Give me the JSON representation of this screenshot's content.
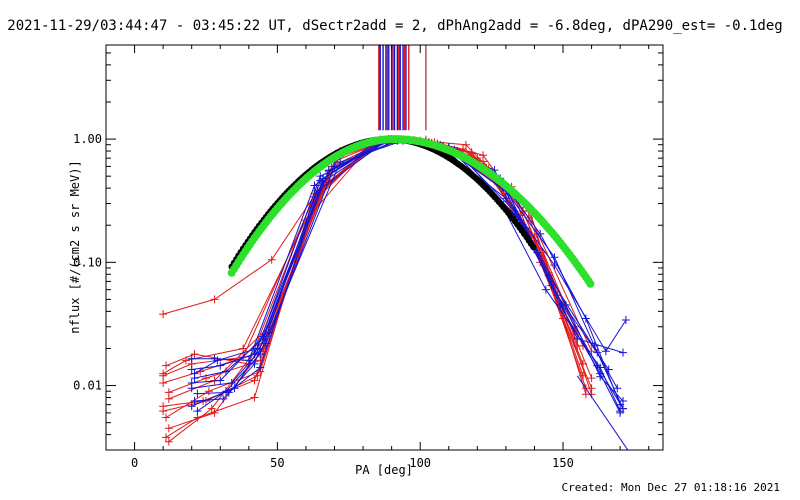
{
  "title": "2021-11-29/03:44:47 - 03:45:22 UT, dSectr2add = 2, dPhAng2add = -6.8deg, dPA290_est= -0.1deg",
  "footer": "Created: Mon Dec 27 01:18:16 2021",
  "chart_data": {
    "type": "line",
    "xlabel": "PA [deg]",
    "ylabel": "nflux [#/(cm2 s sr MeV)]",
    "xlim": [
      -10,
      185
    ],
    "ylim": [
      0.003,
      5.8
    ],
    "yscale": "log",
    "xticks": [
      0,
      50,
      100,
      150
    ],
    "xtick_labels": [
      "0",
      "50",
      "100",
      "150"
    ],
    "yticks": [
      0.01,
      0.1,
      1.0
    ],
    "ytick_labels": [
      "0.01",
      "0.10",
      "1.00"
    ],
    "grid": false,
    "colors": {
      "red": "#e21a1a",
      "blue": "#1414d2",
      "green": "#2ce02c",
      "black": "#000000",
      "darkred": "#8b0000"
    },
    "vertical_markers": {
      "blue": [
        86,
        87,
        88,
        89,
        90,
        91,
        92,
        93,
        94,
        95
      ],
      "red": [
        85.5,
        88.5,
        90.5,
        92.5,
        94.5,
        96
      ],
      "darkred": [
        102
      ],
      "ymin": 1.18
    },
    "series": [
      {
        "color": "red",
        "x": [
          10,
          28,
          48,
          72,
          88,
          98,
          116,
          137,
          160
        ],
        "y": [
          0.038,
          0.05,
          0.105,
          0.72,
          0.97,
          0.98,
          0.9,
          0.28,
          0.019
        ]
      },
      {
        "color": "red",
        "x": [
          10,
          20,
          38,
          63,
          85,
          102,
          122,
          138,
          154
        ],
        "y": [
          0.012,
          0.015,
          0.017,
          0.34,
          0.93,
          0.99,
          0.74,
          0.23,
          0.03
        ]
      },
      {
        "color": "red",
        "x": [
          10,
          24,
          42,
          66,
          87,
          105,
          122,
          140,
          157
        ],
        "y": [
          0.0068,
          0.0075,
          0.011,
          0.4,
          0.97,
          0.94,
          0.62,
          0.16,
          0.012
        ]
      },
      {
        "color": "red",
        "x": [
          11,
          26,
          44,
          64,
          86,
          106,
          120,
          140,
          158
        ],
        "y": [
          0.0055,
          0.009,
          0.013,
          0.35,
          0.99,
          0.92,
          0.7,
          0.15,
          0.0095
        ]
      },
      {
        "color": "red",
        "x": [
          12,
          28,
          45,
          68,
          88,
          108,
          125,
          142,
          160
        ],
        "y": [
          0.0045,
          0.006,
          0.02,
          0.52,
          0.98,
          0.88,
          0.52,
          0.1,
          0.0095
        ]
      },
      {
        "color": "red",
        "x": [
          11,
          22,
          42,
          62,
          84,
          100,
          118,
          135,
          155
        ],
        "y": [
          0.0038,
          0.0055,
          0.008,
          0.3,
          0.94,
          0.97,
          0.78,
          0.24,
          0.021
        ]
      },
      {
        "color": "red",
        "x": [
          12,
          27,
          46,
          70,
          89,
          104,
          125,
          143,
          160
        ],
        "y": [
          0.0035,
          0.0065,
          0.025,
          0.66,
          1.0,
          0.92,
          0.52,
          0.12,
          0.0085
        ]
      },
      {
        "color": "red",
        "x": [
          10,
          18,
          38,
          60,
          83,
          103,
          115,
          132,
          157
        ],
        "y": [
          0.0125,
          0.016,
          0.02,
          0.22,
          0.91,
          0.95,
          0.83,
          0.41,
          0.021
        ]
      },
      {
        "color": "red",
        "x": [
          12,
          25,
          44,
          66,
          87,
          107,
          128,
          145,
          160
        ],
        "y": [
          0.0088,
          0.0115,
          0.016,
          0.42,
          0.98,
          0.9,
          0.42,
          0.082,
          0.0115
        ]
      },
      {
        "color": "red",
        "x": [
          10,
          23,
          45,
          69,
          88,
          110,
          126,
          140,
          157
        ],
        "y": [
          0.0105,
          0.013,
          0.019,
          0.6,
          0.97,
          0.86,
          0.46,
          0.14,
          0.015
        ]
      },
      {
        "color": "red",
        "x": [
          11,
          21,
          40,
          63,
          85,
          104,
          122,
          136,
          154
        ],
        "y": [
          0.0145,
          0.018,
          0.015,
          0.36,
          0.95,
          0.93,
          0.66,
          0.26,
          0.026
        ]
      },
      {
        "color": "red",
        "x": [
          12,
          28,
          47,
          72,
          90,
          110,
          124,
          138,
          158
        ],
        "y": [
          0.0078,
          0.011,
          0.03,
          0.8,
          1.0,
          0.84,
          0.58,
          0.28,
          0.0085
        ]
      },
      {
        "color": "red",
        "x": [
          10,
          25,
          43,
          64,
          86,
          102,
          118,
          133,
          150
        ],
        "y": [
          0.0062,
          0.0075,
          0.012,
          0.37,
          0.96,
          0.97,
          0.76,
          0.34,
          0.035
        ]
      },
      {
        "color": "blue",
        "x": [
          20,
          28,
          40,
          63,
          85,
          102,
          128,
          142,
          158,
          170
        ],
        "y": [
          0.0165,
          0.0165,
          0.016,
          0.42,
          0.97,
          0.95,
          0.48,
          0.17,
          0.035,
          0.007
        ]
      },
      {
        "color": "blue",
        "x": [
          20,
          30,
          42,
          66,
          88,
          107,
          130,
          147,
          161,
          171
        ],
        "y": [
          0.0135,
          0.0145,
          0.018,
          0.45,
          0.98,
          0.89,
          0.38,
          0.11,
          0.021,
          0.0065
        ]
      },
      {
        "color": "blue",
        "x": [
          21,
          32,
          45,
          68,
          90,
          110,
          130,
          145,
          162,
          169
        ],
        "y": [
          0.0115,
          0.013,
          0.024,
          0.55,
          1.0,
          0.85,
          0.4,
          0.078,
          0.0185,
          0.0095
        ]
      },
      {
        "color": "blue",
        "x": [
          20,
          34,
          46,
          70,
          92,
          108,
          128,
          144,
          163,
          170
        ],
        "y": [
          0.0095,
          0.0105,
          0.022,
          0.6,
          0.98,
          0.87,
          0.31,
          0.06,
          0.014,
          0.0062
        ]
      },
      {
        "color": "blue",
        "x": [
          22,
          33,
          44,
          66,
          86,
          106,
          130,
          147,
          165,
          172
        ],
        "y": [
          0.0086,
          0.0088,
          0.014,
          0.48,
          0.96,
          0.9,
          0.33,
          0.095,
          0.019,
          0.034
        ]
      },
      {
        "color": "blue",
        "x": [
          21,
          31,
          42,
          64,
          89,
          104,
          126,
          141,
          155,
          171
        ],
        "y": [
          0.0075,
          0.0078,
          0.015,
          0.38,
          1.0,
          0.92,
          0.56,
          0.12,
          0.024,
          0.0185
        ]
      },
      {
        "color": "blue",
        "x": [
          20,
          35,
          47,
          72,
          94,
          112,
          133,
          146,
          162,
          171
        ],
        "y": [
          0.0068,
          0.0095,
          0.027,
          0.65,
          0.97,
          0.82,
          0.26,
          0.065,
          0.0145,
          0.0065
        ]
      },
      {
        "color": "blue",
        "x": [
          22,
          32,
          44,
          65,
          88,
          108,
          131,
          148,
          166
        ],
        "y": [
          0.0062,
          0.009,
          0.018,
          0.46,
          0.99,
          0.88,
          0.36,
          0.054,
          0.0135
        ]
      },
      {
        "color": "blue",
        "x": [
          21,
          29,
          43,
          65,
          90,
          110,
          135,
          149,
          163,
          170
        ],
        "y": [
          0.0125,
          0.016,
          0.02,
          0.5,
          0.99,
          0.86,
          0.22,
          0.045,
          0.0125,
          0.006
        ]
      },
      {
        "color": "blue",
        "x": [
          20,
          30,
          45,
          68,
          92,
          113,
          137,
          151,
          163,
          171
        ],
        "y": [
          0.0105,
          0.011,
          0.025,
          0.56,
          0.97,
          0.8,
          0.19,
          0.045,
          0.0118,
          0.0075
        ]
      }
    ],
    "fits": [
      {
        "color": "black",
        "shape": "gaussian",
        "center": 89,
        "sigma": 25.2,
        "peak": 1.0,
        "x_range": [
          34,
          140
        ]
      },
      {
        "color": "green",
        "shape": "skewed-gaussian",
        "center": 91,
        "sigma_left": 25.5,
        "sigma_right": 29.5,
        "peak": 1.0,
        "x_range": [
          34,
          160
        ]
      },
      {
        "color": "blue",
        "shape": "line",
        "x": [
          155,
          175
        ],
        "y": [
          0.012,
          0.0025
        ]
      }
    ]
  }
}
